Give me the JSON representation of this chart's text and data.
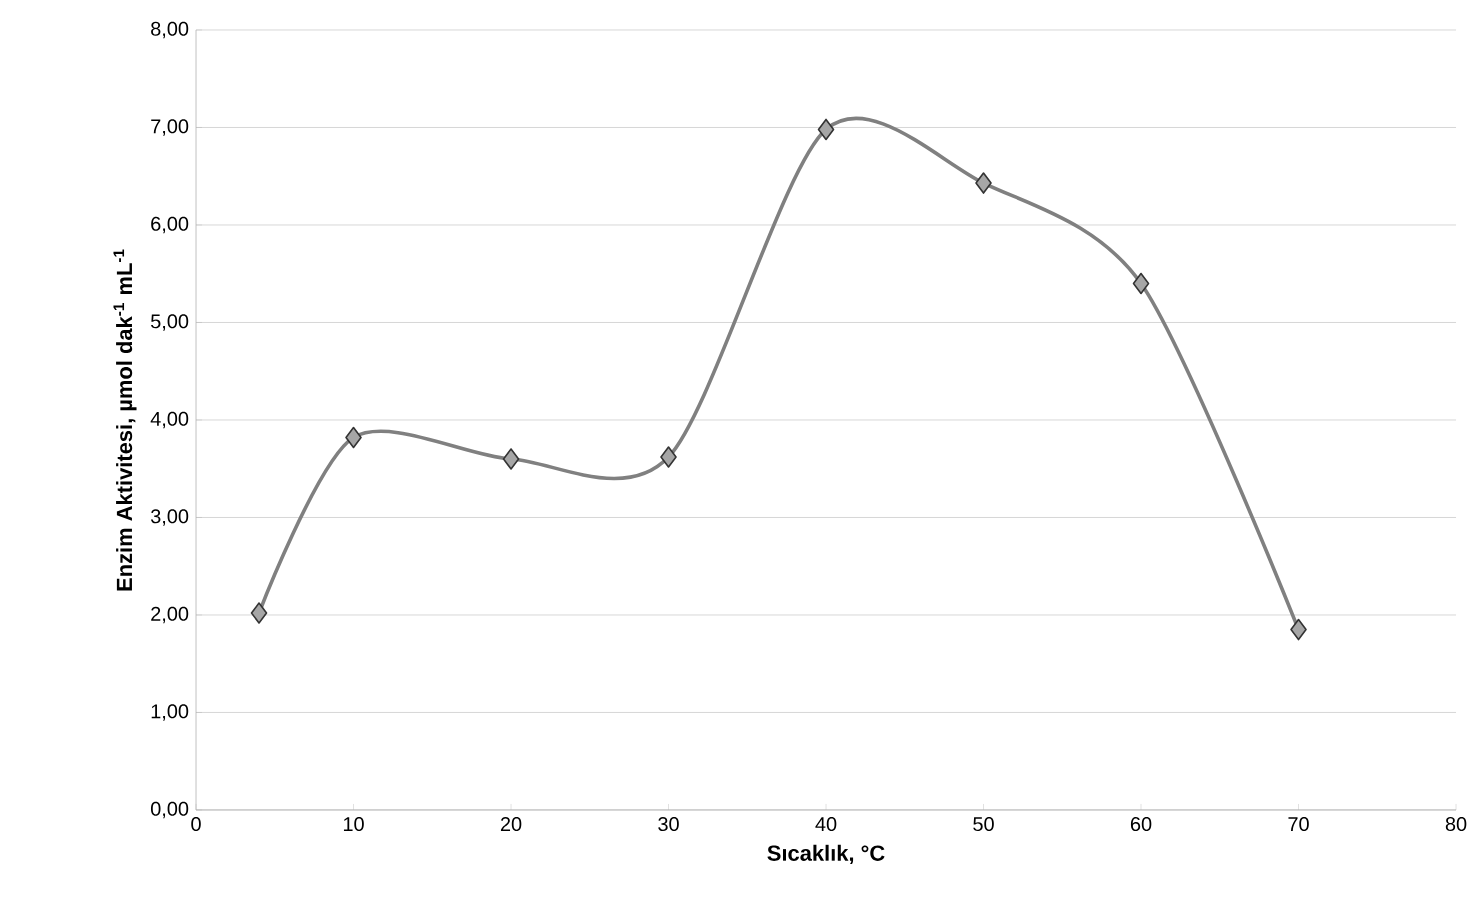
{
  "chart_data": {
    "type": "line",
    "xlabel": "Sıcaklık, °C",
    "ylabel": "Enzim Aktivitesi, µmol dak$^{-1}$ mL$^{-1}$",
    "x": [
      4,
      10,
      20,
      30,
      40,
      50,
      60,
      70
    ],
    "values": [
      2.02,
      3.82,
      3.6,
      3.62,
      6.98,
      6.43,
      5.4,
      1.85
    ],
    "color": "#808080",
    "marker": "diamond",
    "grid": "y",
    "xlim": [
      0,
      80
    ],
    "xticks": [
      0,
      10,
      20,
      30,
      40,
      50,
      60,
      70,
      80
    ],
    "ylim": [
      0,
      8
    ],
    "yticks": [
      {
        "value": 0,
        "label": "0,00"
      },
      {
        "value": 1,
        "label": "1,00"
      },
      {
        "value": 2,
        "label": "2,00"
      },
      {
        "value": 3,
        "label": "3,00"
      },
      {
        "value": 4,
        "label": "4,00"
      },
      {
        "value": 5,
        "label": "5,00"
      },
      {
        "value": 6,
        "label": "6,00"
      },
      {
        "value": 7,
        "label": "7,00"
      },
      {
        "value": 8,
        "label": "8,00"
      }
    ]
  }
}
